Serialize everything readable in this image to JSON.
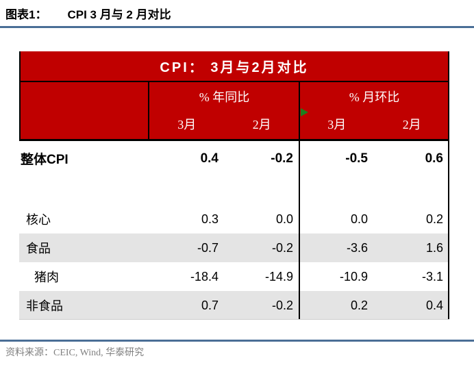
{
  "figure": {
    "label": "图表1：",
    "title": "CPI 3 月与 2 月对比"
  },
  "table": {
    "title": "CPI： 3月与2月对比",
    "column_groups": [
      {
        "label": "% 年同比",
        "months": [
          "3月",
          "2月"
        ]
      },
      {
        "label": "% 月环比",
        "months": [
          "3月",
          "2月"
        ]
      }
    ],
    "rows": [
      {
        "label": "整体CPI",
        "values": [
          "0.4",
          "-0.2",
          "-0.5",
          "0.6"
        ]
      },
      {
        "label": "核心",
        "values": [
          "0.3",
          "0.0",
          "0.0",
          "0.2"
        ]
      },
      {
        "label": "食品",
        "values": [
          "-0.7",
          "-0.2",
          "-3.6",
          "1.6"
        ]
      },
      {
        "label": "猪肉",
        "values": [
          "-18.4",
          "-14.9",
          "-10.9",
          "-3.1"
        ]
      },
      {
        "label": "非食品",
        "values": [
          "0.7",
          "-0.2",
          "0.2",
          "0.4"
        ]
      }
    ]
  },
  "source": "资料来源：CEIC, Wind, 华泰研究",
  "colors": {
    "header_red": "#c00000",
    "shaded_row": "#e4e4e4",
    "rule_blue": "#4a6e96",
    "marker_green": "#1e7e1e",
    "source_gray": "#808080"
  },
  "chart_data": {
    "type": "table",
    "title": "CPI： 3月与2月对比",
    "column_groups": [
      "% 年同比",
      "% 月环比"
    ],
    "columns": [
      "年同比 3月",
      "年同比 2月",
      "月环比 3月",
      "月环比 2月"
    ],
    "row_labels": [
      "整体CPI",
      "核心",
      "食品",
      "猪肉",
      "非食品"
    ],
    "values": [
      [
        0.4,
        -0.2,
        -0.5,
        0.6
      ],
      [
        0.3,
        0.0,
        0.0,
        0.2
      ],
      [
        -0.7,
        -0.2,
        -3.6,
        1.6
      ],
      [
        -18.4,
        -14.9,
        -10.9,
        -3.1
      ],
      [
        0.7,
        -0.2,
        0.2,
        0.4
      ]
    ],
    "unit": "%"
  }
}
